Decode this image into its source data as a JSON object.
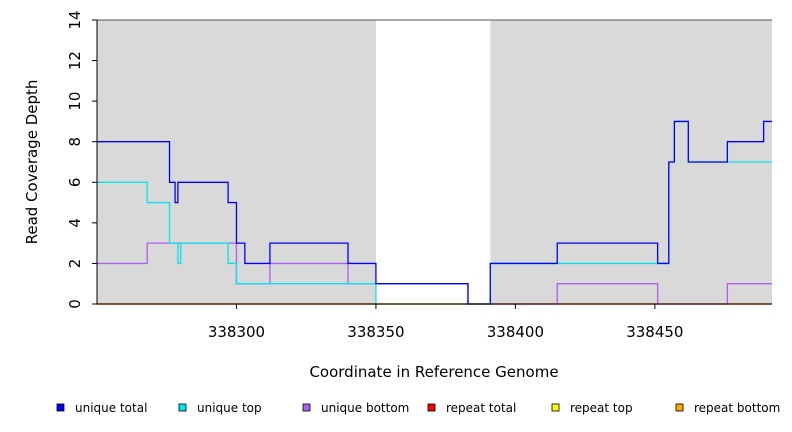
{
  "chart_data": {
    "type": "line",
    "title": "",
    "xlabel": "Coordinate in Reference Genome",
    "ylabel": "Read Coverage Depth",
    "xlim": [
      338250,
      338492
    ],
    "ylim": [
      0,
      14
    ],
    "x_ticks": [
      338300,
      338350,
      338400,
      338450
    ],
    "x_tick_labels": [
      "338300",
      "338350",
      "338400",
      "338450"
    ],
    "y_ticks": [
      0,
      2,
      4,
      6,
      8,
      10,
      12,
      14
    ],
    "y_tick_labels": [
      "0",
      "2",
      "4",
      "6",
      "8",
      "10",
      "12",
      "14"
    ],
    "shaded_regions": [
      [
        338250,
        338350
      ],
      [
        338391,
        338492
      ]
    ],
    "grid": false,
    "legend_position": "bottom",
    "series": [
      {
        "name": "unique total",
        "color": "#0000ff",
        "points": [
          [
            338250,
            8
          ],
          [
            338276,
            8
          ],
          [
            338276,
            6
          ],
          [
            338278,
            6
          ],
          [
            338278,
            5
          ],
          [
            338279,
            5
          ],
          [
            338279,
            6
          ],
          [
            338297,
            6
          ],
          [
            338297,
            5
          ],
          [
            338300,
            5
          ],
          [
            338300,
            3
          ],
          [
            338303,
            3
          ],
          [
            338303,
            2
          ],
          [
            338312,
            2
          ],
          [
            338312,
            3
          ],
          [
            338340,
            3
          ],
          [
            338340,
            2
          ],
          [
            338350,
            2
          ],
          [
            338350,
            1
          ],
          [
            338383,
            1
          ],
          [
            338383,
            0
          ],
          [
            338391,
            0
          ],
          [
            338391,
            2
          ],
          [
            338415,
            2
          ],
          [
            338415,
            3
          ],
          [
            338451,
            3
          ],
          [
            338451,
            2
          ],
          [
            338455,
            2
          ],
          [
            338455,
            7
          ],
          [
            338457,
            7
          ],
          [
            338457,
            9
          ],
          [
            338462,
            9
          ],
          [
            338462,
            7
          ],
          [
            338476,
            7
          ],
          [
            338476,
            8
          ],
          [
            338489,
            8
          ],
          [
            338489,
            9
          ],
          [
            338492,
            9
          ]
        ]
      },
      {
        "name": "unique top",
        "color": "#00e5ee",
        "points": [
          [
            338250,
            6
          ],
          [
            338268,
            6
          ],
          [
            338268,
            5
          ],
          [
            338276,
            5
          ],
          [
            338276,
            3
          ],
          [
            338279,
            3
          ],
          [
            338279,
            2
          ],
          [
            338280,
            2
          ],
          [
            338280,
            3
          ],
          [
            338297,
            3
          ],
          [
            338297,
            2
          ],
          [
            338300,
            2
          ],
          [
            338300,
            1
          ],
          [
            338350,
            1
          ],
          [
            338350,
            0
          ],
          [
            338391,
            0
          ],
          [
            338391,
            2
          ],
          [
            338455,
            2
          ],
          [
            338455,
            7
          ],
          [
            338457,
            7
          ],
          [
            338457,
            9
          ],
          [
            338462,
            9
          ],
          [
            338462,
            7
          ],
          [
            338492,
            7
          ]
        ]
      },
      {
        "name": "unique bottom",
        "color": "#b05ef0",
        "points": [
          [
            338250,
            2
          ],
          [
            338268,
            2
          ],
          [
            338268,
            3
          ],
          [
            338300,
            3
          ],
          [
            338300,
            1
          ],
          [
            338312,
            1
          ],
          [
            338312,
            2
          ],
          [
            338340,
            2
          ],
          [
            338340,
            1
          ],
          [
            338383,
            1
          ],
          [
            338383,
            0
          ],
          [
            338415,
            0
          ],
          [
            338415,
            1
          ],
          [
            338451,
            1
          ],
          [
            338451,
            0
          ],
          [
            338476,
            0
          ],
          [
            338476,
            1
          ],
          [
            338492,
            1
          ]
        ]
      },
      {
        "name": "repeat total",
        "color": "#ff0000",
        "points": [
          [
            338250,
            0
          ],
          [
            338492,
            0
          ]
        ]
      },
      {
        "name": "repeat top",
        "color": "#ffff00",
        "points": [
          [
            338250,
            0
          ],
          [
            338492,
            0
          ]
        ]
      },
      {
        "name": "repeat bottom",
        "color": "#ffa500",
        "points": [
          [
            338250,
            0
          ],
          [
            338492,
            0
          ]
        ]
      }
    ]
  }
}
